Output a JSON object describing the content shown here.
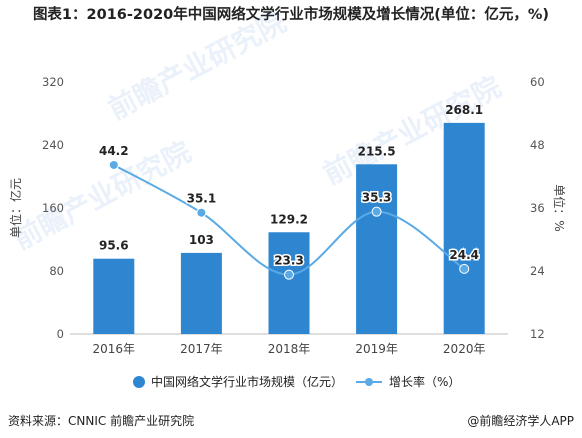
{
  "header": {
    "title": "图表1：2016-2020年中国网络文学行业市场规模及增长情况(单位：亿元，%)"
  },
  "footer": {
    "source": "资料来源：CNNIC 前瞻产业研究院",
    "credit": "@前瞻经济学人APP"
  },
  "watermark": "前瞻产业研究院",
  "chart_data": {
    "type": "bar",
    "categories": [
      "2016年",
      "2017年",
      "2018年",
      "2019年",
      "2020年"
    ],
    "series": [
      {
        "name": "中国网络文学行业市场规模（亿元）",
        "type": "bar",
        "axis": "left",
        "values": [
          95.6,
          103,
          129.2,
          215.5,
          268.1
        ],
        "labels": [
          "95.6",
          "103",
          "129.2",
          "215.5",
          "268.1"
        ],
        "color": "#2e86d1"
      },
      {
        "name": "增长率（%）",
        "type": "line",
        "axis": "right",
        "values": [
          44.2,
          35.1,
          23.3,
          35.3,
          24.4
        ],
        "labels": [
          "44.2",
          "35.1",
          "23.3",
          "35.3",
          "24.4"
        ],
        "color": "#5aaae6"
      }
    ],
    "y_left": {
      "label": "单位：亿元",
      "ylim": [
        0,
        320
      ],
      "ticks": [
        "0",
        "80",
        "160",
        "240",
        "320"
      ]
    },
    "y_right": {
      "label": "单位：%",
      "ylim": [
        12,
        60
      ],
      "ticks": [
        "12",
        "24",
        "36",
        "48",
        "60"
      ]
    },
    "grid": false,
    "legend": "bottom"
  }
}
